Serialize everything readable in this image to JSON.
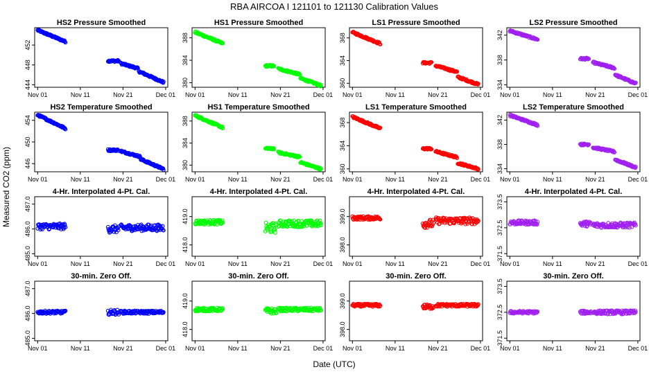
{
  "title": "RBA   AIRCOA I   121101 to 121130   Calibration Values",
  "xlabel": "Date (UTC)",
  "ylabel": "Measured CO2 (ppm)",
  "colors": {
    "HS2": "#0000ff",
    "HS1": "#00ff00",
    "LS1": "#ff0000",
    "LS2": "#a020f0"
  },
  "x_ticks": [
    "Nov 01",
    "Nov 11",
    "Nov 21",
    "Dec 01"
  ],
  "chart_data": [
    {
      "type": "scatter",
      "title": "HS2 Pressure Smoothed",
      "color": "#0000ff",
      "ylim": [
        443.5,
        455.5
      ],
      "yticks": [
        "444",
        "448",
        "452"
      ],
      "segments": [
        {
          "x": [
            1,
            7.5
          ],
          "y": [
            455,
            452.7
          ]
        },
        {
          "x": [
            17.5,
            20.0
          ],
          "y": [
            448.8,
            448.8
          ]
        },
        {
          "x": [
            20.5,
            24.5
          ],
          "y": [
            448.3,
            447.3
          ]
        },
        {
          "x": [
            24.7,
            30.5
          ],
          "y": [
            446.7,
            444.5
          ]
        }
      ]
    },
    {
      "type": "scatter",
      "title": "HS1 Pressure Smoothed",
      "color": "#00ff00",
      "ylim": [
        379.2,
        389.8
      ],
      "yticks": [
        "380",
        "384",
        "388"
      ],
      "segments": [
        {
          "x": [
            1,
            7.5
          ],
          "y": [
            389,
            387.0
          ]
        },
        {
          "x": [
            17.5,
            19.5
          ],
          "y": [
            383.0,
            383.0
          ]
        },
        {
          "x": [
            20.5,
            25.5
          ],
          "y": [
            382.5,
            381.5
          ]
        },
        {
          "x": [
            25.7,
            30.5
          ],
          "y": [
            380.8,
            379.5
          ]
        }
      ]
    },
    {
      "type": "scatter",
      "title": "LS1 Pressure Smoothed",
      "color": "#ff0000",
      "ylim": [
        359.3,
        369.8
      ],
      "yticks": [
        "360",
        "364",
        "368"
      ],
      "segments": [
        {
          "x": [
            1,
            7.5
          ],
          "y": [
            369,
            367.0
          ]
        },
        {
          "x": [
            17.5,
            19.5
          ],
          "y": [
            363.6,
            363.6
          ]
        },
        {
          "x": [
            20.5,
            25.5
          ],
          "y": [
            363.1,
            362.0
          ]
        },
        {
          "x": [
            25.7,
            30.5
          ],
          "y": [
            361.1,
            359.8
          ]
        }
      ]
    },
    {
      "type": "scatter",
      "title": "LS2 Pressure Smoothed",
      "color": "#a020f0",
      "ylim": [
        333.6,
        343.2
      ],
      "yticks": [
        "334",
        "338",
        "342"
      ],
      "segments": [
        {
          "x": [
            1,
            7.5
          ],
          "y": [
            342.7,
            341.3
          ]
        },
        {
          "x": [
            17.5,
            19.5
          ],
          "y": [
            338.2,
            338.2
          ]
        },
        {
          "x": [
            20.5,
            25.5
          ],
          "y": [
            337.6,
            336.7
          ]
        },
        {
          "x": [
            25.7,
            30.5
          ],
          "y": [
            335.6,
            334.2
          ]
        }
      ]
    },
    {
      "type": "scatter",
      "title": "HS2 Temperature Smoothed",
      "color": "#0000ff",
      "ylim": [
        444.5,
        455.5
      ],
      "yticks": [
        "446",
        "450",
        "454"
      ],
      "segments": [
        {
          "x": [
            1,
            7.5
          ],
          "y": [
            455,
            452.5
          ]
        },
        {
          "x": [
            17.5,
            20.0
          ],
          "y": [
            448.5,
            448.5
          ]
        },
        {
          "x": [
            20.5,
            25.0
          ],
          "y": [
            448.3,
            447.3
          ]
        },
        {
          "x": [
            25.2,
            30.5
          ],
          "y": [
            446.8,
            445.0
          ]
        }
      ]
    },
    {
      "type": "scatter",
      "title": "HS1 Temperature Smoothed",
      "color": "#00ff00",
      "ylim": [
        378.8,
        389.6
      ],
      "yticks": [
        "380",
        "384",
        "388"
      ],
      "segments": [
        {
          "x": [
            1,
            7.5
          ],
          "y": [
            389,
            386.8
          ]
        },
        {
          "x": [
            17.5,
            19.5
          ],
          "y": [
            383.0,
            383.0
          ]
        },
        {
          "x": [
            20.5,
            25.5
          ],
          "y": [
            382.3,
            381.5
          ]
        },
        {
          "x": [
            25.7,
            30.5
          ],
          "y": [
            380.5,
            379.3
          ]
        }
      ]
    },
    {
      "type": "scatter",
      "title": "LS1 Temperature Smoothed",
      "color": "#ff0000",
      "ylim": [
        359.5,
        369.8
      ],
      "yticks": [
        "360",
        "364",
        "368"
      ],
      "segments": [
        {
          "x": [
            1,
            7.5
          ],
          "y": [
            369,
            367.0
          ]
        },
        {
          "x": [
            17.5,
            19.5
          ],
          "y": [
            363.5,
            363.5
          ]
        },
        {
          "x": [
            20.5,
            25.5
          ],
          "y": [
            363.0,
            362.0
          ]
        },
        {
          "x": [
            25.7,
            30.5
          ],
          "y": [
            361.0,
            360.0
          ]
        }
      ]
    },
    {
      "type": "scatter",
      "title": "LS2 Temperature Smoothed",
      "color": "#a020f0",
      "ylim": [
        333.5,
        343.3
      ],
      "yticks": [
        "334",
        "338",
        "342"
      ],
      "segments": [
        {
          "x": [
            1,
            7.5
          ],
          "y": [
            342.8,
            341.2
          ]
        },
        {
          "x": [
            17.5,
            19.5
          ],
          "y": [
            338.0,
            338.0
          ]
        },
        {
          "x": [
            20.5,
            25.5
          ],
          "y": [
            337.5,
            336.8
          ]
        },
        {
          "x": [
            25.7,
            30.5
          ],
          "y": [
            335.5,
            334.2
          ]
        }
      ]
    },
    {
      "type": "scatter",
      "title": "4-Hr. Interpolated 4-Pt. Cal.",
      "color": "#0000ff",
      "ylim": [
        484.9,
        487.3
      ],
      "yticks": [
        "485.0",
        "486.0",
        "487.0"
      ],
      "segments": [
        {
          "x": [
            1,
            7.5
          ],
          "y": [
            486.1,
            486.1
          ],
          "spread": 0.12
        },
        {
          "x": [
            17.5,
            20.0
          ],
          "y": [
            486.0,
            486.0
          ],
          "spread": 0.15
        },
        {
          "x": [
            20.5,
            30.5
          ],
          "y": [
            486.05,
            486.05
          ],
          "spread": 0.13
        }
      ]
    },
    {
      "type": "scatter",
      "title": "4-Hr. Interpolated 4-Pt. Cal.",
      "color": "#00ff00",
      "ylim": [
        417.6,
        419.7
      ],
      "yticks": [
        "418.0",
        "419.0"
      ],
      "segments": [
        {
          "x": [
            1,
            7.5
          ],
          "y": [
            418.8,
            418.8
          ],
          "spread": 0.08
        },
        {
          "x": [
            17.5,
            20.0
          ],
          "y": [
            418.6,
            418.6
          ],
          "spread": 0.18
        },
        {
          "x": [
            20.5,
            30.5
          ],
          "y": [
            418.75,
            418.75
          ],
          "spread": 0.12
        }
      ]
    },
    {
      "type": "scatter",
      "title": "4-Hr. Interpolated 4-Pt. Cal.",
      "color": "#ff0000",
      "ylim": [
        397.6,
        399.7
      ],
      "yticks": [
        "398.0",
        "399.0"
      ],
      "segments": [
        {
          "x": [
            1,
            7.5
          ],
          "y": [
            398.95,
            398.95
          ],
          "spread": 0.06
        },
        {
          "x": [
            17.5,
            20.0
          ],
          "y": [
            398.75,
            398.75
          ],
          "spread": 0.15
        },
        {
          "x": [
            20.5,
            30.5
          ],
          "y": [
            398.85,
            398.85
          ],
          "spread": 0.12
        }
      ]
    },
    {
      "type": "scatter",
      "title": "4-Hr. Interpolated 4-Pt. Cal.",
      "color": "#a020f0",
      "ylim": [
        371.4,
        373.7
      ],
      "yticks": [
        "371.5",
        "372.5",
        "373.5"
      ],
      "segments": [
        {
          "x": [
            1,
            7.5
          ],
          "y": [
            372.7,
            372.7
          ],
          "spread": 0.08
        },
        {
          "x": [
            17.5,
            20.0
          ],
          "y": [
            372.65,
            372.65
          ],
          "spread": 0.1
        },
        {
          "x": [
            20.5,
            30.5
          ],
          "y": [
            372.6,
            372.6
          ],
          "spread": 0.1
        }
      ]
    },
    {
      "type": "scatter",
      "title": "30-min. Zero Off.",
      "color": "#0000ff",
      "ylim": [
        484.9,
        487.3
      ],
      "yticks": [
        "485.0",
        "486.0",
        "487.0"
      ],
      "segments": [
        {
          "x": [
            1,
            7.5
          ],
          "y": [
            486.05,
            486.05
          ],
          "spread": 0.06
        },
        {
          "x": [
            17.5,
            20.0
          ],
          "y": [
            486.05,
            486.05
          ],
          "spread": 0.1
        },
        {
          "x": [
            20.5,
            30.5
          ],
          "y": [
            486.05,
            486.05
          ],
          "spread": 0.06
        }
      ]
    },
    {
      "type": "scatter",
      "title": "30-min. Zero Off.",
      "color": "#00ff00",
      "ylim": [
        417.6,
        419.7
      ],
      "yticks": [
        "418.0",
        "419.0"
      ],
      "segments": [
        {
          "x": [
            1,
            7.5
          ],
          "y": [
            418.7,
            418.7
          ],
          "spread": 0.06
        },
        {
          "x": [
            17.5,
            20.0
          ],
          "y": [
            418.65,
            418.65
          ],
          "spread": 0.1
        },
        {
          "x": [
            20.5,
            30.5
          ],
          "y": [
            418.7,
            418.7
          ],
          "spread": 0.06
        }
      ]
    },
    {
      "type": "scatter",
      "title": "30-min. Zero Off.",
      "color": "#ff0000",
      "ylim": [
        397.6,
        399.7
      ],
      "yticks": [
        "398.0",
        "399.0"
      ],
      "segments": [
        {
          "x": [
            1,
            7.5
          ],
          "y": [
            398.85,
            398.85
          ],
          "spread": 0.05
        },
        {
          "x": [
            17.5,
            20.0
          ],
          "y": [
            398.8,
            398.8
          ],
          "spread": 0.08
        },
        {
          "x": [
            20.5,
            30.5
          ],
          "y": [
            398.85,
            398.85
          ],
          "spread": 0.05
        }
      ]
    },
    {
      "type": "scatter",
      "title": "30-min. Zero Off.",
      "color": "#a020f0",
      "ylim": [
        371.4,
        373.7
      ],
      "yticks": [
        "371.5",
        "372.5",
        "373.5"
      ],
      "segments": [
        {
          "x": [
            1,
            7.5
          ],
          "y": [
            372.5,
            372.5
          ],
          "spread": 0.05
        },
        {
          "x": [
            17.5,
            20.0
          ],
          "y": [
            372.5,
            372.5
          ],
          "spread": 0.06
        },
        {
          "x": [
            20.5,
            30.5
          ],
          "y": [
            372.5,
            372.5
          ],
          "spread": 0.07
        }
      ]
    }
  ]
}
